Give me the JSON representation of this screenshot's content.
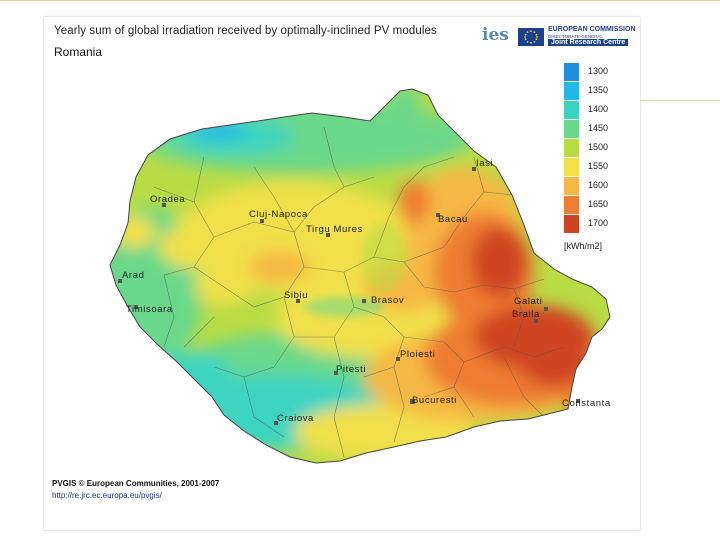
{
  "map": {
    "title": "Yearly sum of global irradiation received by optimally-inclined PV modules",
    "subtitle": "Romania",
    "logo_text": "ies",
    "org_line1": "EUROPEAN COMMISSION",
    "org_line2": "DIRECTORATE-GENERAL",
    "org_line3": "Joint Research Centre",
    "legend": {
      "unit": "[kWh/m2]",
      "items": [
        {
          "label": "1300",
          "color": "#1e8fe0"
        },
        {
          "label": "1350",
          "color": "#24b8e8"
        },
        {
          "label": "1400",
          "color": "#3cd4c0"
        },
        {
          "label": "1450",
          "color": "#6ad88a"
        },
        {
          "label": "1500",
          "color": "#b9dc45"
        },
        {
          "label": "1550",
          "color": "#f1e04a"
        },
        {
          "label": "1600",
          "color": "#f6b844"
        },
        {
          "label": "1650",
          "color": "#ee7d33"
        },
        {
          "label": "1700",
          "color": "#cf4424"
        }
      ]
    },
    "cities": [
      {
        "name": "Iasi"
      },
      {
        "name": "Oradea"
      },
      {
        "name": "Cluj-Napoca"
      },
      {
        "name": "Bacau"
      },
      {
        "name": "Tirgu Mures"
      },
      {
        "name": "Arad"
      },
      {
        "name": "Timisoara"
      },
      {
        "name": "Sibiu"
      },
      {
        "name": "Brasov"
      },
      {
        "name": "Galati"
      },
      {
        "name": "Braila"
      },
      {
        "name": "Ploiesti"
      },
      {
        "name": "Pitesti"
      },
      {
        "name": "Bucuresti"
      },
      {
        "name": "Craiova"
      },
      {
        "name": "Constanta"
      }
    ],
    "credit": "PVGIS © European Communities, 2001-2007",
    "credit_url": "http://re.jrc.ec.europa.eu/pvgis/"
  }
}
